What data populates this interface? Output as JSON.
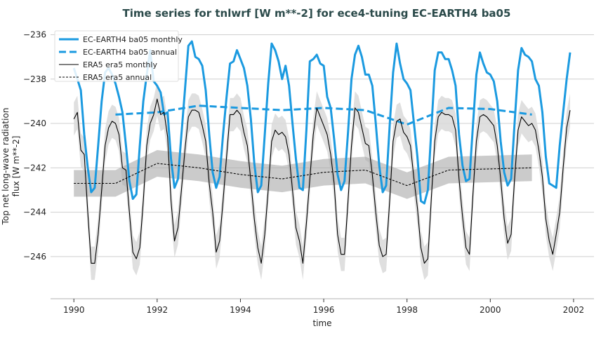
{
  "chart_data": {
    "type": "line",
    "title": "Time series for tnlwrf [W m**-2] for ece4-tuning EC-EARTH4 ba05",
    "xlabel": "time",
    "ylabel_lines": [
      "Top net long-wave radiation",
      "flux [W m**-2]"
    ],
    "xlim": [
      1989.44,
      2002.49
    ],
    "ylim": [
      -247.9,
      -235.7
    ],
    "xticks": [
      1990,
      1992,
      1994,
      1996,
      1998,
      2000,
      2002
    ],
    "xtick_labels": [
      "1990",
      "1992",
      "1994",
      "1996",
      "1998",
      "2000",
      "2002"
    ],
    "yticks": [
      -246,
      -244,
      -242,
      -240,
      -238,
      -236
    ],
    "ytick_labels": [
      "−246",
      "−244",
      "−242",
      "−240",
      "−238",
      "−236"
    ],
    "grid": "horizontal",
    "legend_placement": "top-left",
    "monthly_start_year": 1990,
    "series": [
      {
        "name": "EC-EARTH4 ba05 monthly",
        "color": "#1b9ae0",
        "style": "solid-thick",
        "values": [
          -237.5,
          -238.0,
          -238.5,
          -240.5,
          -242.0,
          -243.1,
          -242.9,
          -241.0,
          -239.0,
          -237.7,
          -237.5,
          -237.8,
          -238.2,
          -238.8,
          -239.5,
          -241.0,
          -242.6,
          -243.4,
          -243.2,
          -241.0,
          -239.0,
          -237.8,
          -236.7,
          -238.1,
          -238.3,
          -238.6,
          -239.6,
          -239.5,
          -241.6,
          -242.9,
          -242.5,
          -240.5,
          -238.5,
          -236.5,
          -236.3,
          -237.0,
          -237.1,
          -237.4,
          -238.5,
          -240.5,
          -242.2,
          -242.9,
          -242.4,
          -240.5,
          -238.8,
          -237.3,
          -237.2,
          -236.7,
          -237.1,
          -237.5,
          -238.3,
          -239.8,
          -241.8,
          -243.1,
          -242.8,
          -240.5,
          -238.2,
          -236.4,
          -236.7,
          -237.2,
          -238.0,
          -237.4,
          -238.3,
          -240.0,
          -241.6,
          -242.9,
          -243.0,
          -240.3,
          -237.2,
          -237.1,
          -236.9,
          -237.3,
          -237.4,
          -238.8,
          -239.3,
          -240.7,
          -242.3,
          -243.0,
          -242.6,
          -240.4,
          -238.0,
          -236.9,
          -236.5,
          -237.0,
          -237.8,
          -237.8,
          -238.3,
          -240.0,
          -241.9,
          -243.1,
          -242.8,
          -240.1,
          -237.7,
          -236.4,
          -237.3,
          -238.0,
          -238.2,
          -238.5,
          -240.0,
          -241.5,
          -243.5,
          -243.6,
          -243.0,
          -240.3,
          -237.6,
          -236.8,
          -236.8,
          -237.1,
          -237.1,
          -237.6,
          -238.3,
          -240.5,
          -241.9,
          -242.6,
          -242.5,
          -240.1,
          -237.8,
          -236.8,
          -237.3,
          -237.7,
          -237.8,
          -238.1,
          -239.0,
          -240.8,
          -242.2,
          -242.8,
          -242.5,
          -240.0,
          -237.6,
          -236.6,
          -236.9,
          -237.0,
          -237.2,
          -238.0,
          -238.3,
          -239.5,
          -241.5,
          -242.7,
          -242.8,
          -242.9,
          -241.0,
          -239.5,
          -238.0,
          -236.8
        ]
      },
      {
        "name": "EC-EARTH4 ba05 annual",
        "color": "#1b9ae0",
        "style": "dashed-thick",
        "x": [
          1991,
          1992,
          1993,
          1994,
          1995,
          1996,
          1997,
          1998,
          1999,
          2000,
          2001
        ],
        "values": [
          -239.6,
          -239.5,
          -239.2,
          -239.3,
          -239.4,
          -239.3,
          -239.4,
          -240.05,
          -239.3,
          -239.35,
          -239.6
        ]
      },
      {
        "name": "ERA5 era5 monthly",
        "color": "#000000",
        "style": "solid-thin",
        "band_halfwidth": 0.75,
        "values": [
          -239.8,
          -239.5,
          -241.2,
          -241.4,
          -244.0,
          -246.3,
          -246.3,
          -245.0,
          -243.0,
          -241.0,
          -240.2,
          -239.9,
          -240.0,
          -240.5,
          -242.0,
          -242.1,
          -244.0,
          -245.8,
          -246.1,
          -245.6,
          -243.5,
          -241.0,
          -240.0,
          -239.6,
          -238.9,
          -239.6,
          -239.5,
          -240.6,
          -243.5,
          -245.3,
          -244.7,
          -243.0,
          -241.2,
          -239.7,
          -239.4,
          -239.4,
          -239.5,
          -240.1,
          -240.8,
          -242.7,
          -244.0,
          -245.8,
          -245.3,
          -243.5,
          -241.5,
          -239.6,
          -239.6,
          -239.4,
          -239.6,
          -240.4,
          -241.0,
          -242.6,
          -244.3,
          -245.6,
          -246.3,
          -245.0,
          -243.0,
          -240.8,
          -240.3,
          -240.5,
          -240.4,
          -240.6,
          -241.4,
          -243.0,
          -244.7,
          -245.3,
          -246.3,
          -244.5,
          -242.5,
          -240.5,
          -239.3,
          -239.7,
          -240.1,
          -240.5,
          -241.4,
          -242.7,
          -245.0,
          -245.9,
          -245.9,
          -243.5,
          -241.0,
          -239.3,
          -239.5,
          -240.2,
          -240.9,
          -241.0,
          -242.3,
          -244.0,
          -245.5,
          -246.0,
          -245.9,
          -243.5,
          -240.8,
          -239.9,
          -239.8,
          -240.4,
          -240.6,
          -241.0,
          -242.5,
          -243.8,
          -245.6,
          -246.3,
          -246.1,
          -243.4,
          -240.8,
          -239.7,
          -239.5,
          -239.6,
          -239.6,
          -239.7,
          -240.3,
          -242.5,
          -244.2,
          -245.6,
          -245.9,
          -243.2,
          -240.8,
          -239.7,
          -239.6,
          -239.7,
          -239.9,
          -240.1,
          -241.0,
          -242.5,
          -244.3,
          -245.4,
          -245.0,
          -242.5,
          -240.3,
          -239.7,
          -239.9,
          -240.1,
          -240.0,
          -240.3,
          -241.2,
          -242.4,
          -244.3,
          -245.3,
          -245.9,
          -245.0,
          -244.0,
          -242.0,
          -240.2,
          -239.4
        ]
      },
      {
        "name": "ERA5 era5 annual",
        "color": "#000000",
        "style": "dashed-thin",
        "band_halfwidth": 0.6,
        "x": [
          1990,
          1991,
          1992,
          1993,
          1994,
          1995,
          1996,
          1997,
          1998,
          1999,
          2000,
          2001
        ],
        "values": [
          -242.7,
          -242.7,
          -241.8,
          -242.0,
          -242.3,
          -242.5,
          -242.2,
          -242.1,
          -242.8,
          -242.1,
          -242.05,
          -242.0
        ]
      }
    ]
  }
}
